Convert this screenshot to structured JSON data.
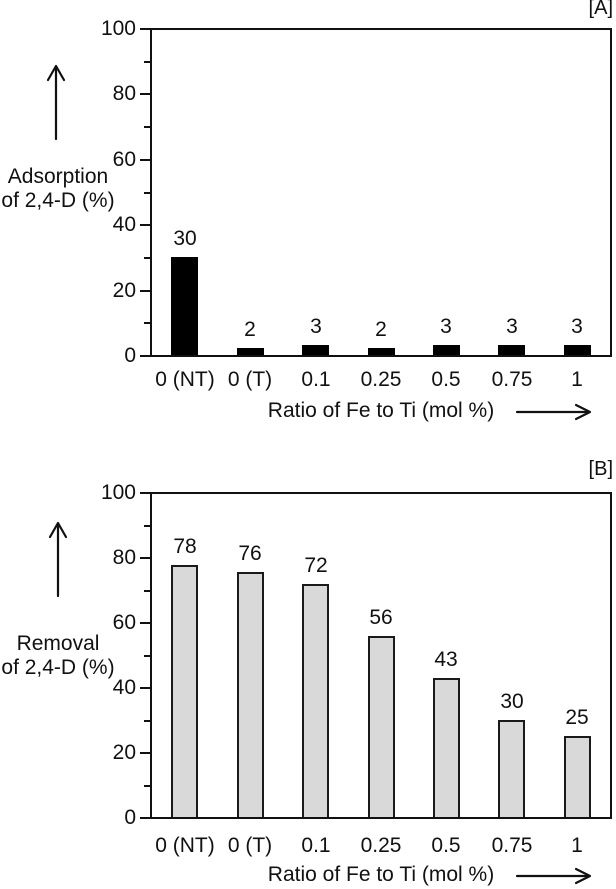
{
  "style": {
    "background": "#ffffff",
    "text_color": "#111111",
    "axis_color": "#111111"
  },
  "chart_data": [
    {
      "type": "bar",
      "panel_label": "[A]",
      "categories": [
        "0 (NT)",
        "0 (T)",
        "0.1",
        "0.25",
        "0.5",
        "0.75",
        "1"
      ],
      "values": [
        30,
        2,
        3,
        2,
        3,
        3,
        3
      ],
      "bar_value_labels": [
        "30",
        "2",
        "3",
        "2",
        "3",
        "3",
        "3"
      ],
      "ylabel_lines": [
        "Adsorption",
        "of 2,4-D (%)"
      ],
      "xlabel": "Ratio of Fe to Ti (mol %)",
      "ylim": [
        0,
        100
      ],
      "ytick_values": [
        0,
        20,
        40,
        60,
        80,
        100
      ],
      "ytick_labels": [
        "0",
        "20",
        "40",
        "60",
        "80",
        "100"
      ],
      "minor_tick_values": [
        10,
        30,
        50,
        70,
        90
      ],
      "grid": "off",
      "legend": "none",
      "bar_fill": "#000000",
      "bar_border": "#000000"
    },
    {
      "type": "bar",
      "panel_label": "[B]",
      "categories": [
        "0 (NT)",
        "0 (T)",
        "0.1",
        "0.25",
        "0.5",
        "0.75",
        "1"
      ],
      "values": [
        78,
        76,
        72,
        56,
        43,
        30,
        25
      ],
      "bar_value_labels": [
        "78",
        "76",
        "72",
        "56",
        "43",
        "30",
        "25"
      ],
      "ylabel_lines": [
        "Removal",
        "of 2,4-D (%)"
      ],
      "xlabel": "Ratio of Fe to Ti (mol %)",
      "ylim": [
        0,
        100
      ],
      "ytick_values": [
        0,
        20,
        40,
        60,
        80,
        100
      ],
      "ytick_labels": [
        "0",
        "20",
        "40",
        "60",
        "80",
        "100"
      ],
      "minor_tick_values": [
        10,
        30,
        50,
        70,
        90
      ],
      "grid": "off",
      "legend": "none",
      "bar_fill": "#d9d9d9",
      "bar_border": "#1a1a1a"
    }
  ]
}
